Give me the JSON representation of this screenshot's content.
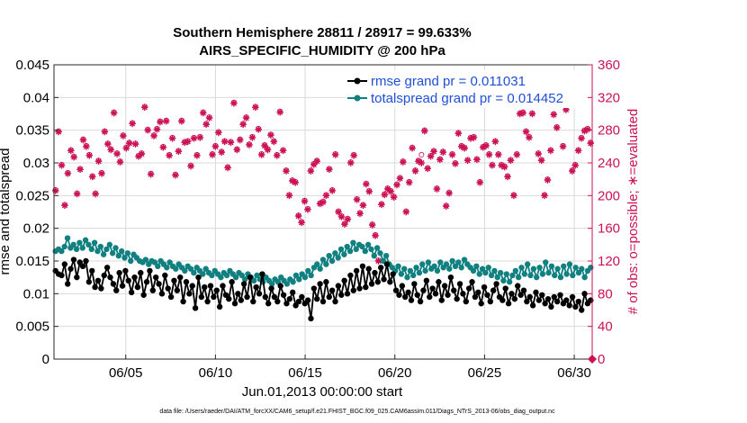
{
  "chart_data": {
    "type": "line",
    "title_line1": "Southern Hemisphere 28811 / 28917 = 99.633%",
    "title_line2": "AIRS_SPECIFIC_HUMIDITY @ 200 hPa",
    "xlabel": "Jun.01,2013 00:00:00 start",
    "ylabel_left": "rmse and totalspread",
    "ylabel_right": "# of obs: o=possible; ∗=evaluated",
    "footnote": "data file: /Users/raeder/DAI/ATM_forcXX/CAM6_setup/f.e21.FHIST_BGC.f09_025.CAM6assim.011/Diags_NTrS_2013-06/obs_diag_output.nc",
    "x_range": [
      1,
      31
    ],
    "y_left_range": [
      0,
      0.045
    ],
    "y_right_range": [
      0,
      360
    ],
    "x_ticks": [
      {
        "value": 5,
        "label": "06/05"
      },
      {
        "value": 10,
        "label": "06/10"
      },
      {
        "value": 15,
        "label": "06/15"
      },
      {
        "value": 20,
        "label": "06/20"
      },
      {
        "value": 25,
        "label": "06/25"
      },
      {
        "value": 30,
        "label": "06/30"
      }
    ],
    "y_left_ticks": [
      {
        "value": 0,
        "label": "0"
      },
      {
        "value": 0.005,
        "label": "0.005"
      },
      {
        "value": 0.01,
        "label": "0.01"
      },
      {
        "value": 0.015,
        "label": "0.015"
      },
      {
        "value": 0.02,
        "label": "0.02"
      },
      {
        "value": 0.025,
        "label": "0.025"
      },
      {
        "value": 0.03,
        "label": "0.03"
      },
      {
        "value": 0.035,
        "label": "0.035"
      },
      {
        "value": 0.04,
        "label": "0.04"
      },
      {
        "value": 0.045,
        "label": "0.045"
      }
    ],
    "y_right_ticks": [
      {
        "value": 0,
        "label": "0"
      },
      {
        "value": 40,
        "label": "40"
      },
      {
        "value": 80,
        "label": "80"
      },
      {
        "value": 120,
        "label": "120"
      },
      {
        "value": 160,
        "label": "160"
      },
      {
        "value": 200,
        "label": "200"
      },
      {
        "value": 240,
        "label": "240"
      },
      {
        "value": 280,
        "label": "280"
      },
      {
        "value": 320,
        "label": "320"
      },
      {
        "value": 360,
        "label": "360"
      }
    ],
    "grid": true,
    "legend_position": "top-right",
    "colors": {
      "rmse": "#000000",
      "totalspread": "#108080",
      "obs": "#cc1155",
      "legend_text": "#1f4fd6"
    },
    "series": [
      {
        "name": "rmse grand pr = 0.011031",
        "axis": "left",
        "values": [
          0.0135,
          0.013,
          0.0128,
          0.0145,
          0.0115,
          0.0138,
          0.0152,
          0.0125,
          0.0148,
          0.0142,
          0.015,
          0.0118,
          0.0135,
          0.011,
          0.012,
          0.0108,
          0.0128,
          0.014,
          0.0125,
          0.0115,
          0.0105,
          0.0132,
          0.0112,
          0.0135,
          0.012,
          0.0102,
          0.0125,
          0.011,
          0.0132,
          0.0098,
          0.0118,
          0.0135,
          0.0105,
          0.0125,
          0.0115,
          0.01,
          0.0128,
          0.0108,
          0.0095,
          0.012,
          0.0105,
          0.0125,
          0.0088,
          0.0118,
          0.01,
          0.0112,
          0.0078,
          0.0125,
          0.0095,
          0.011,
          0.0088,
          0.0112,
          0.0095,
          0.0105,
          0.008,
          0.0112,
          0.0098,
          0.0092,
          0.0118,
          0.0085,
          0.01,
          0.009,
          0.0115,
          0.0095,
          0.0125,
          0.0088,
          0.011,
          0.01,
          0.013,
          0.0095,
          0.0085,
          0.0108,
          0.0095,
          0.0088,
          0.0112,
          0.0098,
          0.0085,
          0.0092,
          0.0102,
          0.0082,
          0.0088,
          0.0095,
          0.0085,
          0.009,
          0.0062,
          0.0108,
          0.0092,
          0.0115,
          0.0088,
          0.0118,
          0.0095,
          0.0105,
          0.0088,
          0.0112,
          0.0098,
          0.012,
          0.01,
          0.0128,
          0.0105,
          0.0135,
          0.0108,
          0.0142,
          0.011,
          0.0138,
          0.0115,
          0.0132,
          0.0118,
          0.014,
          0.0122,
          0.0145,
          0.0118,
          0.013,
          0.0105,
          0.0098,
          0.0112,
          0.0095,
          0.0102,
          0.009,
          0.0115,
          0.0098,
          0.0088,
          0.0105,
          0.012,
          0.0095,
          0.0108,
          0.01,
          0.0118,
          0.009,
          0.0112,
          0.0098,
          0.0125,
          0.0105,
          0.0092,
          0.0115,
          0.01,
          0.0088,
          0.0108,
          0.0118,
          0.0095,
          0.0102,
          0.0085,
          0.011,
          0.0098,
          0.0088,
          0.0105,
          0.0115,
          0.0095,
          0.009,
          0.0108,
          0.0085,
          0.01,
          0.0092,
          0.0112,
          0.0098,
          0.0105,
          0.0088,
          0.0095,
          0.0082,
          0.0102,
          0.009,
          0.0098,
          0.0085,
          0.0092,
          0.008,
          0.0095,
          0.0088,
          0.0098,
          0.0085,
          0.009,
          0.0082,
          0.0095,
          0.008,
          0.0088,
          0.0075,
          0.01,
          0.0085,
          0.009
        ]
      },
      {
        "name": "totalspread grand pr = 0.014452",
        "axis": "left",
        "values": [
          0.0165,
          0.0168,
          0.0165,
          0.0172,
          0.0185,
          0.017,
          0.0175,
          0.0168,
          0.0178,
          0.017,
          0.0182,
          0.0175,
          0.0168,
          0.0178,
          0.0165,
          0.0172,
          0.016,
          0.0168,
          0.0175,
          0.0162,
          0.017,
          0.0158,
          0.0165,
          0.0155,
          0.0162,
          0.015,
          0.016,
          0.0155,
          0.015,
          0.0148,
          0.0152,
          0.0145,
          0.015,
          0.0148,
          0.0142,
          0.015,
          0.0145,
          0.014,
          0.0148,
          0.0142,
          0.0138,
          0.0145,
          0.014,
          0.0135,
          0.0142,
          0.0138,
          0.0132,
          0.014,
          0.0135,
          0.013,
          0.0138,
          0.0132,
          0.0128,
          0.0135,
          0.013,
          0.0125,
          0.0132,
          0.0128,
          0.0135,
          0.013,
          0.0125,
          0.0132,
          0.0128,
          0.0122,
          0.013,
          0.0125,
          0.012,
          0.0128,
          0.0122,
          0.0118,
          0.0125,
          0.012,
          0.0115,
          0.0122,
          0.0118,
          0.0125,
          0.012,
          0.0115,
          0.0122,
          0.0118,
          0.0128,
          0.0122,
          0.013,
          0.0125,
          0.0135,
          0.0128,
          0.014,
          0.0145,
          0.0138,
          0.0152,
          0.0145,
          0.0158,
          0.015,
          0.0162,
          0.0155,
          0.0168,
          0.016,
          0.0172,
          0.0165,
          0.0178,
          0.0168,
          0.0175,
          0.0172,
          0.0165,
          0.0175,
          0.0168,
          0.0158,
          0.017,
          0.0162,
          0.015,
          0.0158,
          0.0145,
          0.014,
          0.0135,
          0.0142,
          0.013,
          0.0138,
          0.0125,
          0.0135,
          0.0128,
          0.014,
          0.0132,
          0.0145,
          0.0135,
          0.0148,
          0.0138,
          0.0142,
          0.0135,
          0.0148,
          0.014,
          0.0145,
          0.0138,
          0.015,
          0.0142,
          0.0148,
          0.014,
          0.0152,
          0.0145,
          0.014,
          0.0135,
          0.0142,
          0.013,
          0.0138,
          0.0132,
          0.014,
          0.0128,
          0.0135,
          0.0125,
          0.0132,
          0.012,
          0.013,
          0.0118,
          0.0128,
          0.0135,
          0.0125,
          0.014,
          0.013,
          0.0145,
          0.0128,
          0.0138,
          0.0125,
          0.014,
          0.013,
          0.0148,
          0.0132,
          0.0142,
          0.0128,
          0.0138,
          0.0125,
          0.0142,
          0.013,
          0.0145,
          0.0128,
          0.014,
          0.0132,
          0.0138,
          0.0125,
          0.0135,
          0.014
        ]
      },
      {
        "name": "evaluated",
        "axis": "right",
        "style": "markers",
        "values": [
          206,
          278,
          237,
          188,
          227,
          255,
          247,
          202,
          232,
          268,
          260,
          249,
          223,
          202,
          242,
          227,
          278,
          263,
          256,
          301,
          251,
          241,
          273,
          258,
          264,
          288,
          263,
          248,
          251,
          308,
          280,
          226,
          273,
          281,
          290,
          259,
          291,
          249,
          270,
          225,
          254,
          291,
          265,
          266,
          236,
          270,
          249,
          271,
          301,
          287,
          295,
          250,
          260,
          277,
          253,
          266,
          234,
          265,
          313,
          256,
          268,
          287,
          295,
          262,
          271,
          308,
          281,
          250,
          261,
          256,
          274,
          266,
          249,
          302,
          255,
          230,
          200,
          218,
          216,
          175,
          167,
          193,
          183,
          230,
          238,
          242,
          190,
          192,
          200,
          232,
          206,
          250,
          180,
          174,
          165,
          171,
          240,
          249,
          195,
          178,
          188,
          214,
          205,
          164,
          151,
          120,
          189,
          201,
          208,
          205,
          198,
          213,
          221,
          241,
          180,
          216,
          258,
          230,
          242,
          240,
          279,
          233,
          248,
          254,
          208,
          244,
          253,
          187,
          203,
          250,
          239,
          276,
          260,
          258,
          243,
          270,
          271,
          244,
          216,
          259,
          261,
          250,
          237,
          266,
          250,
          237,
          235,
          223,
          243,
          200,
          250,
          300,
          301,
          278,
          271,
          300,
          313,
          251,
          243,
          200,
          219,
          255,
          299,
          283,
          320,
          260,
          305,
          316,
          230,
          237,
          255,
          270,
          279,
          281,
          264
        ]
      },
      {
        "name": "possible",
        "axis": "right",
        "style": "open-circle",
        "values": [
          207,
          279,
          238,
          189,
          228,
          256,
          248,
          203,
          233,
          269,
          261,
          250,
          224,
          203,
          243,
          228,
          279,
          264,
          257,
          302,
          252,
          242,
          274,
          259,
          265,
          289,
          264,
          249,
          252,
          309,
          281,
          227,
          274,
          282,
          291,
          260,
          292,
          250,
          271,
          226,
          255,
          292,
          266,
          267,
          237,
          271,
          250,
          272,
          302,
          288,
          296,
          251,
          261,
          278,
          254,
          267,
          235,
          266,
          314,
          257,
          269,
          288,
          296,
          263,
          272,
          309,
          282,
          251,
          262,
          257,
          275,
          267,
          250,
          303,
          256,
          231,
          201,
          219,
          217,
          176,
          168,
          194,
          184,
          231,
          239,
          243,
          191,
          193,
          201,
          233,
          207,
          251,
          181,
          175,
          166,
          172,
          241,
          250,
          196,
          179,
          189,
          215,
          206,
          165,
          152,
          121,
          190,
          202,
          209,
          206,
          199,
          214,
          222,
          242,
          181,
          217,
          259,
          231,
          243,
          250,
          280,
          234,
          249,
          255,
          209,
          245,
          254,
          188,
          204,
          251,
          240,
          277,
          261,
          259,
          244,
          271,
          272,
          245,
          217,
          260,
          262,
          251,
          238,
          267,
          251,
          238,
          236,
          224,
          244,
          201,
          251,
          301,
          302,
          279,
          272,
          301,
          314,
          252,
          244,
          201,
          220,
          256,
          300,
          284,
          321,
          261,
          306,
          317,
          231,
          238,
          256,
          271,
          280,
          282,
          265
        ]
      }
    ],
    "legend_entries": [
      {
        "label": "rmse grand pr = 0.011031",
        "color": "#000000"
      },
      {
        "label": "totalspread grand pr = 0.014452",
        "color": "#108080"
      }
    ]
  }
}
